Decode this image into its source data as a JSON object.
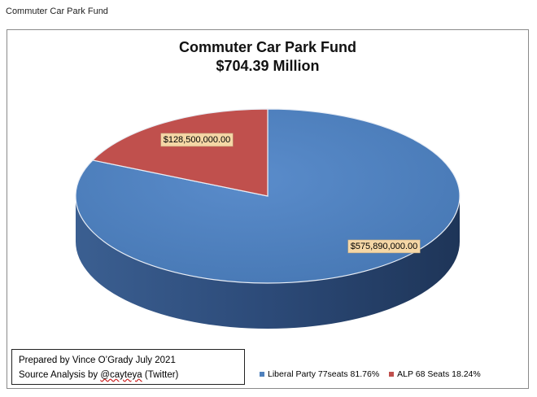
{
  "document_title": "Commuter Car Park Fund",
  "credits": {
    "line1": "Prepared by Vince O’Grady July 2021",
    "line2_prefix": "Source Analysis by ",
    "line2_handle": "@cayteya",
    "line2_suffix": " (Twitter)"
  },
  "colors": {
    "liberal": "#4f81bd",
    "alp": "#c0504d",
    "label_bg": "#f5d7a6"
  },
  "chart_data": {
    "type": "pie",
    "style": "3d",
    "title": "Commuter Car Park Fund",
    "subtitle": "$704.39 Million",
    "legend_position": "bottom-right",
    "slices": [
      {
        "name": "Liberal Party 77seats 81.76%",
        "value": 575890000,
        "label": "$575,890,000.00",
        "color": "#4f81bd"
      },
      {
        "name": "ALP 68 Seats 18.24%",
        "value": 128500000,
        "label": "$128,500,000.00",
        "color": "#c0504d"
      }
    ]
  }
}
